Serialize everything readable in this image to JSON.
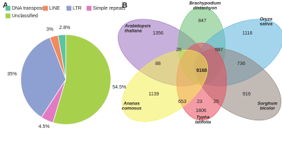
{
  "chart_data": {
    "type": "pie",
    "panel": "A",
    "categories": [
      "DNA transposon",
      "LINE",
      "LTR",
      "Simple repeats",
      "Unclassified"
    ],
    "values": [
      2.8,
      3,
      35,
      4.5,
      54.5
    ],
    "value_labels": [
      "2.8%",
      "3%",
      "35%",
      "4.5%",
      "54.5%"
    ],
    "colors": [
      "#5cc3a0",
      "#f28a5e",
      "#8e9fd1",
      "#e17ac3",
      "#a7d04c"
    ]
  },
  "venn": {
    "panel": "B",
    "sets": [
      {
        "name": [
          "Arabidopsis",
          "thaliana"
        ],
        "color": "#9a6fc0"
      },
      {
        "name": [
          "Brachypodium",
          "distachyon"
        ],
        "color": "#6cbf73"
      },
      {
        "name": [
          "Oryza",
          "sativa"
        ],
        "color": "#5ab3de"
      },
      {
        "name": [
          "Sorghum",
          "bicolor"
        ],
        "color": "#8e8179"
      },
      {
        "name": [
          "Typha",
          "latifolia"
        ],
        "color": "#ea4b5c"
      },
      {
        "name": [
          "Ananas",
          "comosus"
        ],
        "color": "#f4ee52"
      }
    ],
    "counts": [
      "847",
      "1356",
      "1116",
      "26",
      "587",
      "88",
      "9168",
      "736",
      "1139",
      "916",
      "653",
      "23",
      "25",
      "1806"
    ]
  }
}
